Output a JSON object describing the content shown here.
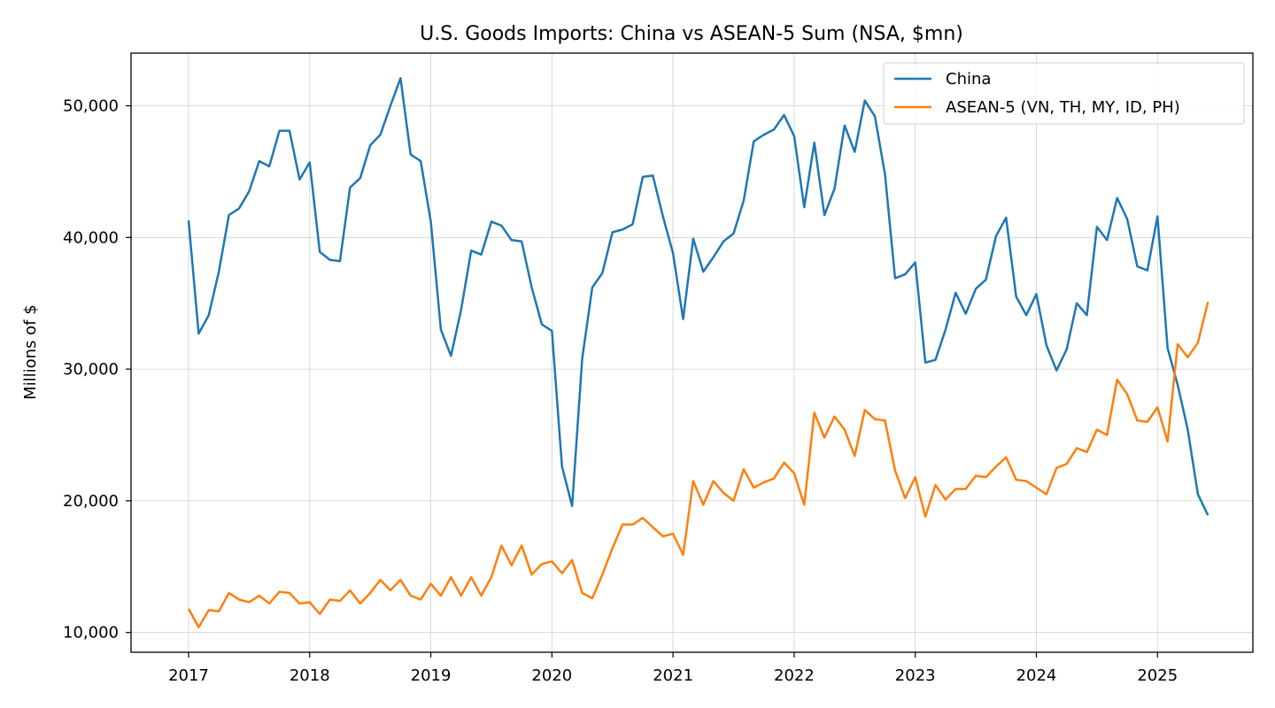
{
  "chart_data": {
    "type": "line",
    "title": "U.S. Goods Imports: China vs ASEAN-5 Sum (NSA, $mn)",
    "xlabel": "",
    "ylabel": "Millions of $",
    "xlim": [
      "2016-07",
      "2025-11"
    ],
    "ylim": [
      8500,
      54000
    ],
    "x_ticks": [
      "2017",
      "2018",
      "2019",
      "2020",
      "2021",
      "2022",
      "2023",
      "2024",
      "2025"
    ],
    "y_ticks": [
      "10,000",
      "20,000",
      "30,000",
      "40,000",
      "50,000"
    ],
    "y_tick_values": [
      10000,
      20000,
      30000,
      40000,
      50000
    ],
    "grid": true,
    "legend_position": "top-right",
    "x": [
      "2017-01",
      "2017-02",
      "2017-03",
      "2017-04",
      "2017-05",
      "2017-06",
      "2017-07",
      "2017-08",
      "2017-09",
      "2017-10",
      "2017-11",
      "2017-12",
      "2018-01",
      "2018-02",
      "2018-03",
      "2018-04",
      "2018-05",
      "2018-06",
      "2018-07",
      "2018-08",
      "2018-09",
      "2018-10",
      "2018-11",
      "2018-12",
      "2019-01",
      "2019-02",
      "2019-03",
      "2019-04",
      "2019-05",
      "2019-06",
      "2019-07",
      "2019-08",
      "2019-09",
      "2019-10",
      "2019-11",
      "2019-12",
      "2020-01",
      "2020-02",
      "2020-03",
      "2020-04",
      "2020-05",
      "2020-06",
      "2020-07",
      "2020-08",
      "2020-09",
      "2020-10",
      "2020-11",
      "2020-12",
      "2021-01",
      "2021-02",
      "2021-03",
      "2021-04",
      "2021-05",
      "2021-06",
      "2021-07",
      "2021-08",
      "2021-09",
      "2021-10",
      "2021-11",
      "2021-12",
      "2022-01",
      "2022-02",
      "2022-03",
      "2022-04",
      "2022-05",
      "2022-06",
      "2022-07",
      "2022-08",
      "2022-09",
      "2022-10",
      "2022-11",
      "2022-12",
      "2023-01",
      "2023-02",
      "2023-03",
      "2023-04",
      "2023-05",
      "2023-06",
      "2023-07",
      "2023-08",
      "2023-09",
      "2023-10",
      "2023-11",
      "2023-12",
      "2024-01",
      "2024-02",
      "2024-03",
      "2024-04",
      "2024-05",
      "2024-06",
      "2024-07",
      "2024-08",
      "2024-09",
      "2024-10",
      "2024-11",
      "2024-12",
      "2025-01",
      "2025-02",
      "2025-03",
      "2025-04",
      "2025-05",
      "2025-06"
    ],
    "series": [
      {
        "name": "China",
        "color": "#1f77b4",
        "values": [
          41300,
          32700,
          34100,
          37400,
          41700,
          42200,
          43500,
          45800,
          45400,
          48100,
          48100,
          44400,
          45700,
          38900,
          38300,
          38200,
          43800,
          44500,
          47000,
          47800,
          50000,
          52100,
          46300,
          45800,
          41200,
          33000,
          31000,
          34500,
          39000,
          38700,
          41200,
          40900,
          39800,
          39700,
          36200,
          33400,
          32900,
          22600,
          19600,
          30800,
          36200,
          37300,
          40400,
          40600,
          41000,
          44600,
          44700,
          41600,
          38800,
          33800,
          39900,
          37400,
          38500,
          39700,
          40300,
          42800,
          47300,
          47800,
          48200,
          49300,
          47700,
          42300,
          47200,
          41700,
          43700,
          48500,
          46500,
          50400,
          49200,
          44800,
          36900,
          37200,
          38100,
          30500,
          30700,
          33000,
          35800,
          34200,
          36100,
          36800,
          40100,
          41500,
          35500,
          34100,
          35700,
          31800,
          29900,
          31500,
          35000,
          34100,
          40800,
          39800,
          43000,
          41400,
          37800,
          37500,
          41600,
          31600,
          28800,
          25400,
          20500,
          18900
        ]
      },
      {
        "name": "ASEAN-5 (VN, TH, MY, ID, PH)",
        "color": "#ff7f0e",
        "values": [
          11800,
          10400,
          11700,
          11600,
          13000,
          12500,
          12300,
          12800,
          12200,
          13100,
          13000,
          12200,
          12300,
          11400,
          12500,
          12400,
          13200,
          12200,
          13000,
          14000,
          13200,
          14000,
          12800,
          12500,
          13700,
          12800,
          14200,
          12800,
          14200,
          12800,
          14200,
          16600,
          15100,
          16600,
          14400,
          15200,
          15400,
          14500,
          15500,
          13000,
          12600,
          14400,
          16400,
          18200,
          18200,
          18700,
          18000,
          17300,
          17500,
          15900,
          21500,
          19700,
          21500,
          20600,
          20000,
          22400,
          21000,
          21400,
          21700,
          22900,
          22100,
          19700,
          26700,
          24800,
          26400,
          25400,
          23400,
          26900,
          26200,
          26100,
          22300,
          20200,
          21800,
          18800,
          21200,
          20100,
          20900,
          20900,
          21900,
          21800,
          22600,
          23300,
          21600,
          21500,
          21000,
          20500,
          22500,
          22800,
          24000,
          23700,
          25400,
          25000,
          29200,
          28100,
          26100,
          26000,
          27100,
          24500,
          31900,
          30900,
          32000,
          35100
        ]
      }
    ]
  }
}
